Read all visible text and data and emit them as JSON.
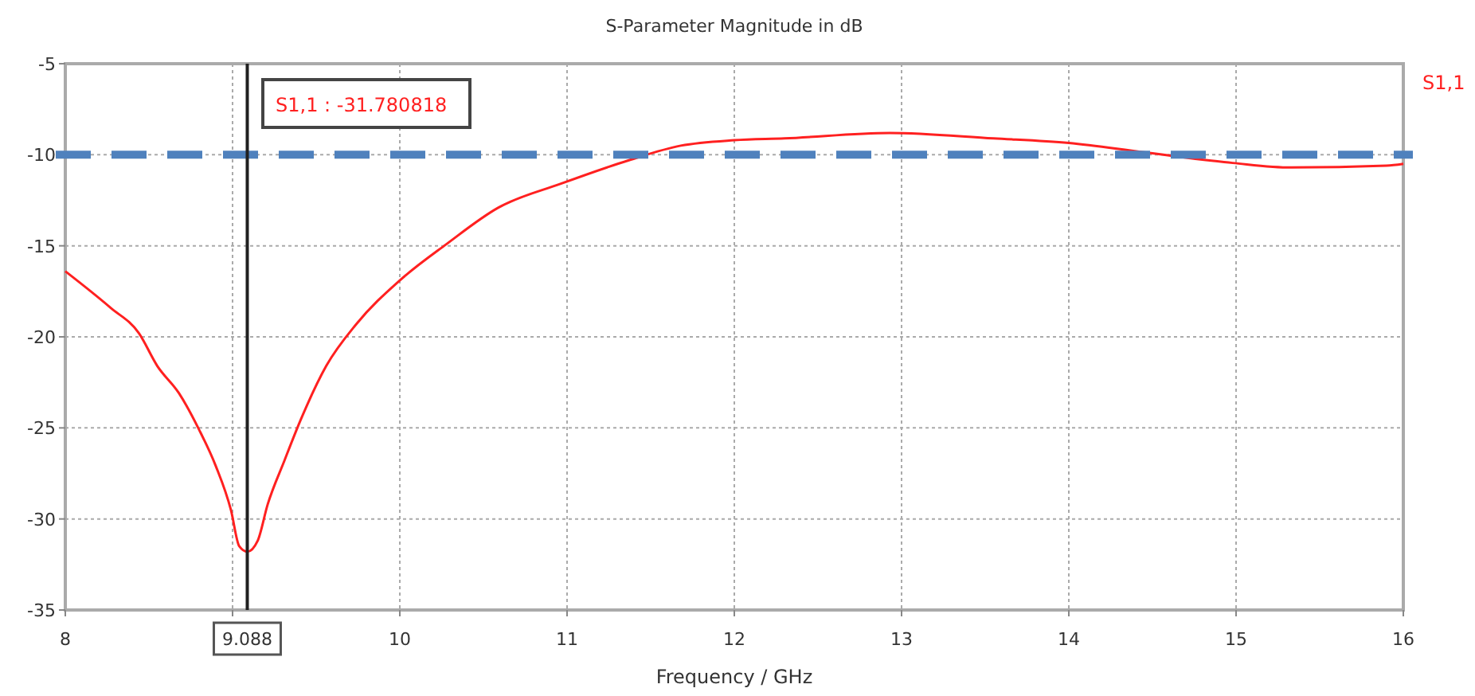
{
  "chart_data": {
    "type": "line",
    "title": "S-Parameter Magnitude in dB",
    "xlabel": "Frequency / GHz",
    "xlim": [
      8,
      16
    ],
    "xticks": [
      8,
      {
        "value": 9,
        "label": null
      },
      10,
      11,
      12,
      13,
      14,
      15,
      16
    ],
    "ylim": [
      -35,
      -5
    ],
    "yticks": [
      -35,
      -30,
      -25,
      -20,
      -15,
      -10,
      -5
    ],
    "grid": true,
    "series": [
      {
        "name": "S1,1",
        "color": "#ff2020",
        "x": [
          8,
          8.27,
          8.44,
          8.55,
          8.68,
          8.8,
          8.9,
          8.99,
          9.04,
          9.088,
          9.15,
          9.21,
          9.31,
          9.41,
          9.56,
          9.74,
          10,
          10.28,
          10.59,
          10.96,
          11.37,
          11.68,
          12,
          12.3,
          12.93,
          13.55,
          14,
          14.44,
          14.98,
          15.33,
          15.9,
          16
        ],
        "values": [
          -16.4,
          -18.4,
          -19.8,
          -21.6,
          -23.1,
          -25.1,
          -27.1,
          -29.5,
          -31.5,
          -31.8,
          -31.2,
          -29.2,
          -26.8,
          -24.5,
          -21.6,
          -19.3,
          -16.9,
          -14.9,
          -12.9,
          -11.6,
          -10.3,
          -9.5,
          -9.2,
          -9.1,
          -8.8,
          -9.1,
          -9.35,
          -9.85,
          -10.45,
          -10.7,
          -10.6,
          -10.5
        ]
      }
    ],
    "ref_lines": [
      {
        "axis": "y",
        "value": -10,
        "color": "#4f81bd",
        "line_style": "dashed"
      },
      {
        "axis": "x",
        "value": 9.088,
        "label": "9.088",
        "color": "#202020",
        "line_style": "solid"
      }
    ],
    "annotations": [
      "S1,1 : -31.780818"
    ]
  }
}
